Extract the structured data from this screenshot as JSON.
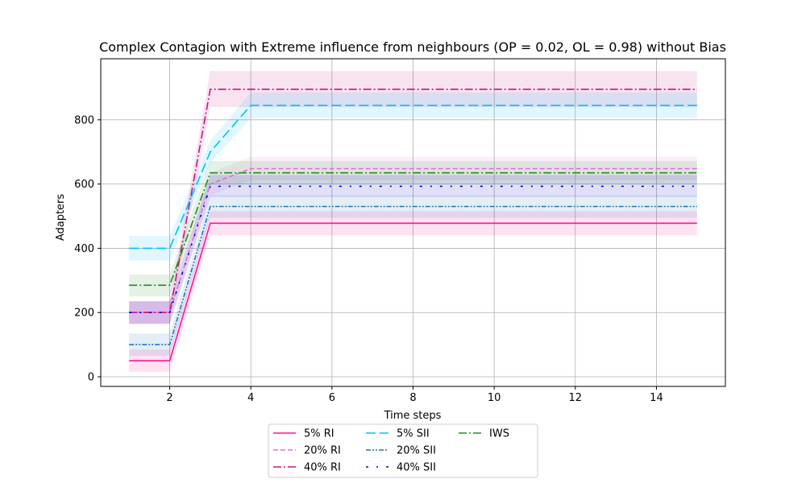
{
  "chart_data": {
    "type": "line",
    "title": "Complex Contagion with Extreme influence from neighbours (OP = 0.02, OL = 0.98) without Bias",
    "xlabel": "Time steps",
    "ylabel": "Adapters",
    "xlim": [
      0.3,
      15.7
    ],
    "ylim": [
      -30,
      990
    ],
    "xticks": [
      2,
      4,
      6,
      8,
      10,
      12,
      14
    ],
    "yticks": [
      0,
      200,
      400,
      600,
      800
    ],
    "grid": true,
    "legend_position": "bottom-center",
    "x": [
      1,
      2,
      3,
      4,
      5,
      6,
      7,
      8,
      9,
      10,
      11,
      12,
      13,
      14,
      15
    ],
    "series": [
      {
        "name": "5% RI",
        "color": "#ff1493",
        "dash": "solid",
        "values": [
          50,
          50,
          478,
          478,
          478,
          478,
          478,
          478,
          478,
          478,
          478,
          478,
          478,
          478,
          478
        ],
        "lower": [
          15,
          15,
          440,
          440,
          440,
          440,
          440,
          440,
          440,
          440,
          440,
          440,
          440,
          440,
          440
        ],
        "upper": [
          85,
          85,
          515,
          515,
          515,
          515,
          515,
          515,
          515,
          515,
          515,
          515,
          515,
          515,
          515
        ]
      },
      {
        "name": "20% RI",
        "color": "#da70d6",
        "dash": "dashed",
        "values": [
          200,
          200,
          600,
          648,
          648,
          648,
          648,
          648,
          648,
          648,
          648,
          648,
          648,
          648,
          648
        ],
        "lower": [
          165,
          165,
          565,
          612,
          612,
          612,
          612,
          612,
          612,
          612,
          612,
          612,
          612,
          612,
          612
        ],
        "upper": [
          235,
          235,
          635,
          685,
          685,
          685,
          685,
          685,
          685,
          685,
          685,
          685,
          685,
          685,
          685
        ]
      },
      {
        "name": "40% RI",
        "color": "#c71585",
        "dash": "dashdot",
        "values": [
          200,
          200,
          895,
          895,
          895,
          895,
          895,
          895,
          895,
          895,
          895,
          895,
          895,
          895,
          895
        ],
        "lower": [
          165,
          165,
          840,
          840,
          840,
          840,
          840,
          840,
          840,
          840,
          840,
          840,
          840,
          840,
          840
        ],
        "upper": [
          235,
          235,
          952,
          952,
          952,
          952,
          952,
          952,
          952,
          952,
          952,
          952,
          952,
          952,
          952
        ]
      },
      {
        "name": "5% SII",
        "color": "#00bfff",
        "dash": "longdash",
        "values": [
          400,
          400,
          700,
          845,
          845,
          845,
          845,
          845,
          845,
          845,
          845,
          845,
          845,
          845,
          845
        ],
        "lower": [
          362,
          362,
          665,
          805,
          805,
          805,
          805,
          805,
          805,
          805,
          805,
          805,
          805,
          805,
          805
        ],
        "upper": [
          438,
          438,
          735,
          885,
          885,
          885,
          885,
          885,
          885,
          885,
          885,
          885,
          885,
          885,
          885
        ]
      },
      {
        "name": "20% SII",
        "color": "#1f77b4",
        "dash": "dashdotdot",
        "values": [
          100,
          100,
          530,
          530,
          530,
          530,
          530,
          530,
          530,
          530,
          530,
          530,
          530,
          530,
          530
        ],
        "lower": [
          65,
          65,
          495,
          495,
          495,
          495,
          495,
          495,
          495,
          495,
          495,
          495,
          495,
          495,
          495
        ],
        "upper": [
          135,
          135,
          565,
          565,
          565,
          565,
          565,
          565,
          565,
          565,
          565,
          565,
          565,
          565,
          565
        ]
      },
      {
        "name": "40% SII",
        "color": "#0000cd",
        "dash": "loosedashdot",
        "values": [
          200,
          200,
          593,
          593,
          593,
          593,
          593,
          593,
          593,
          593,
          593,
          593,
          593,
          593,
          593
        ],
        "lower": [
          165,
          165,
          560,
          560,
          560,
          560,
          560,
          560,
          560,
          560,
          560,
          560,
          560,
          560,
          560
        ],
        "upper": [
          235,
          235,
          628,
          628,
          628,
          628,
          628,
          628,
          628,
          628,
          628,
          628,
          628,
          628,
          628
        ]
      },
      {
        "name": "IWS",
        "color": "#228b22",
        "dash": "dashdot",
        "values": [
          285,
          285,
          635,
          635,
          635,
          635,
          635,
          635,
          635,
          635,
          635,
          635,
          635,
          635,
          635
        ],
        "lower": [
          250,
          250,
          598,
          598,
          598,
          598,
          598,
          598,
          598,
          598,
          598,
          598,
          598,
          598,
          598
        ],
        "upper": [
          318,
          318,
          672,
          672,
          672,
          672,
          672,
          672,
          672,
          672,
          672,
          672,
          672,
          672,
          672
        ]
      }
    ]
  }
}
